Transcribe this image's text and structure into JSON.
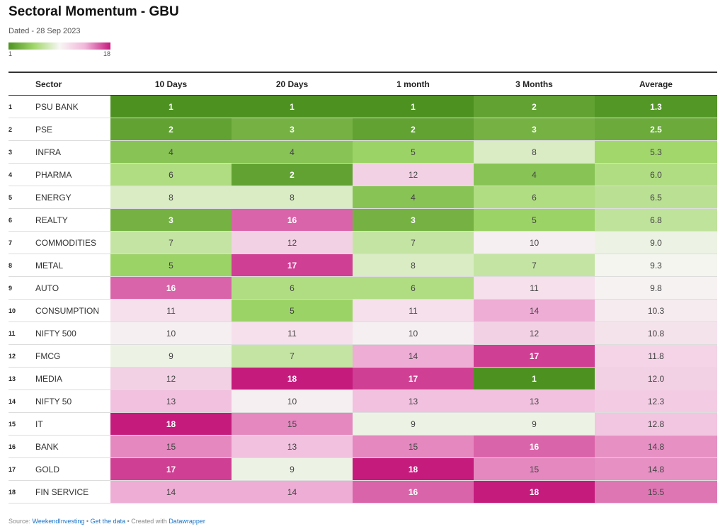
{
  "header": {
    "title": "Sectoral Momentum - GBU",
    "subtitle": "Dated - 28 Sep 2023"
  },
  "legend": {
    "min": "1",
    "max": "18"
  },
  "footer": {
    "source_prefix": "Source: ",
    "source_link": "WeekendInvesting",
    "sep1": " • ",
    "data_link": "Get the data",
    "sep2": " • Created with ",
    "created_link": "Datawrapper"
  },
  "chart_data": {
    "type": "heatmap",
    "title": "Sectoral Momentum - GBU",
    "subtitle": "Dated - 28 Sep 2023",
    "columns": [
      "Sector",
      "10 Days",
      "20 Days",
      "1 month",
      "3 Months",
      "Average"
    ],
    "color_scale": {
      "min": 1,
      "max": 18,
      "low_color": "#4d9221",
      "high_color": "#c51b7d"
    },
    "rows": [
      {
        "rank": "1",
        "sector": "PSU BANK",
        "values": [
          "1",
          "1",
          "1",
          "2",
          "1.3"
        ]
      },
      {
        "rank": "2",
        "sector": "PSE",
        "values": [
          "2",
          "3",
          "2",
          "3",
          "2.5"
        ]
      },
      {
        "rank": "3",
        "sector": "INFRA",
        "values": [
          "4",
          "4",
          "5",
          "8",
          "5.3"
        ]
      },
      {
        "rank": "4",
        "sector": "PHARMA",
        "values": [
          "6",
          "2",
          "12",
          "4",
          "6.0"
        ]
      },
      {
        "rank": "5",
        "sector": "ENERGY",
        "values": [
          "8",
          "8",
          "4",
          "6",
          "6.5"
        ]
      },
      {
        "rank": "6",
        "sector": "REALTY",
        "values": [
          "3",
          "16",
          "3",
          "5",
          "6.8"
        ]
      },
      {
        "rank": "7",
        "sector": "COMMODITIES",
        "values": [
          "7",
          "12",
          "7",
          "10",
          "9.0"
        ]
      },
      {
        "rank": "8",
        "sector": "METAL",
        "values": [
          "5",
          "17",
          "8",
          "7",
          "9.3"
        ]
      },
      {
        "rank": "9",
        "sector": "AUTO",
        "values": [
          "16",
          "6",
          "6",
          "11",
          "9.8"
        ]
      },
      {
        "rank": "10",
        "sector": "CONSUMPTION",
        "values": [
          "11",
          "5",
          "11",
          "14",
          "10.3"
        ]
      },
      {
        "rank": "11",
        "sector": "NIFTY 500",
        "values": [
          "10",
          "11",
          "10",
          "12",
          "10.8"
        ]
      },
      {
        "rank": "12",
        "sector": "FMCG",
        "values": [
          "9",
          "7",
          "14",
          "17",
          "11.8"
        ]
      },
      {
        "rank": "13",
        "sector": "MEDIA",
        "values": [
          "12",
          "18",
          "17",
          "1",
          "12.0"
        ]
      },
      {
        "rank": "14",
        "sector": "NIFTY 50",
        "values": [
          "13",
          "10",
          "13",
          "13",
          "12.3"
        ]
      },
      {
        "rank": "15",
        "sector": "IT",
        "values": [
          "18",
          "15",
          "9",
          "9",
          "12.8"
        ]
      },
      {
        "rank": "16",
        "sector": "BANK",
        "values": [
          "15",
          "13",
          "15",
          "16",
          "14.8"
        ]
      },
      {
        "rank": "17",
        "sector": "GOLD",
        "values": [
          "17",
          "9",
          "18",
          "15",
          "14.8"
        ]
      },
      {
        "rank": "18",
        "sector": "FIN SERVICE",
        "values": [
          "14",
          "14",
          "16",
          "18",
          "15.5"
        ]
      }
    ]
  }
}
